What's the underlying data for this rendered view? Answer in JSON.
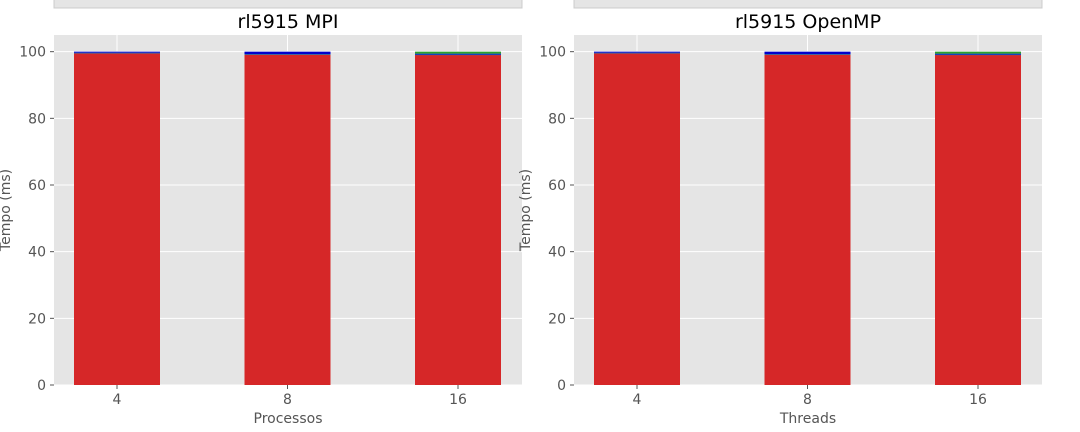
{
  "chart_data": [
    {
      "type": "bar",
      "stacked": true,
      "title": "rl5915 MPI",
      "xlabel": "Processos",
      "ylabel": "Tempo (ms)",
      "categories": [
        "4",
        "8",
        "16"
      ],
      "ylim": [
        0,
        105
      ],
      "yticks": [
        "0",
        "20",
        "40",
        "60",
        "80",
        "100"
      ],
      "grid": true,
      "series": [
        {
          "color": "#d62728",
          "values": [
            99.6,
            99.2,
            99.1
          ]
        },
        {
          "color": "#1f77b4",
          "values": [
            0.1,
            0.1,
            0.1
          ]
        },
        {
          "color": "#0000cc",
          "values": [
            0.3,
            0.7,
            0.2
          ]
        },
        {
          "color": "#2ca02c",
          "values": [
            0.0,
            0.0,
            0.6
          ]
        }
      ]
    },
    {
      "type": "bar",
      "stacked": true,
      "title": "rl5915 OpenMP",
      "xlabel": "Threads",
      "ylabel": "Tempo (ms)",
      "categories": [
        "4",
        "8",
        "16"
      ],
      "ylim": [
        0,
        105
      ],
      "yticks": [
        "0",
        "20",
        "40",
        "60",
        "80",
        "100"
      ],
      "grid": true,
      "series": [
        {
          "color": "#d62728",
          "values": [
            99.6,
            99.2,
            99.1
          ]
        },
        {
          "color": "#1f77b4",
          "values": [
            0.1,
            0.1,
            0.1
          ]
        },
        {
          "color": "#0000cc",
          "values": [
            0.3,
            0.7,
            0.2
          ]
        },
        {
          "color": "#2ca02c",
          "values": [
            0.0,
            0.0,
            0.6
          ]
        }
      ]
    }
  ]
}
